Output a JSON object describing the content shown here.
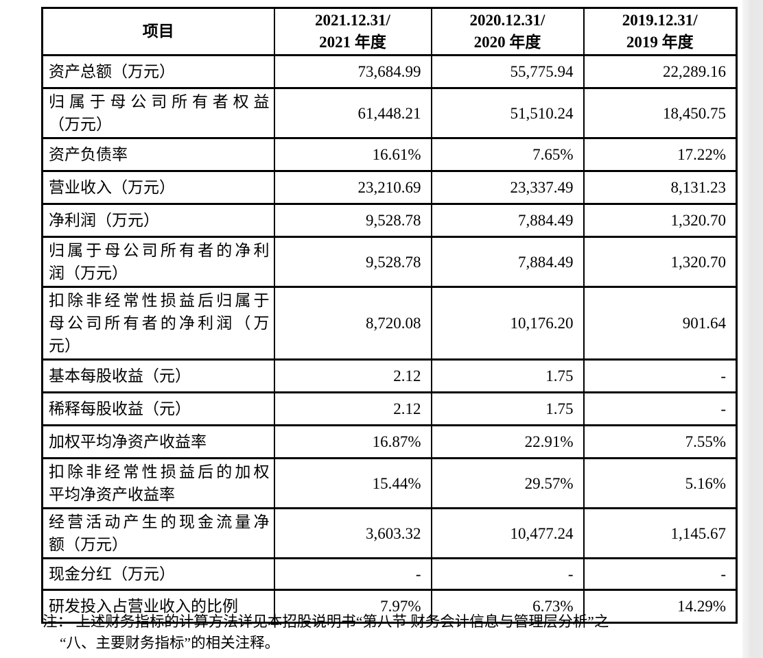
{
  "table": {
    "header": {
      "item_label": "项目",
      "col_2021": "2021.12.31/\n2021 年度",
      "col_2020": "2020.12.31/\n2020 年度",
      "col_2019": "2019.12.31/\n2019 年度"
    },
    "rows": [
      {
        "label": "资产总额（万元）",
        "v2021": "73,684.99",
        "v2020": "55,775.94",
        "v2019": "22,289.16"
      },
      {
        "label": "归属于母公司所有者权益\n（万元）",
        "v2021": "61,448.21",
        "v2020": "51,510.24",
        "v2019": "18,450.75"
      },
      {
        "label": "资产负债率",
        "v2021": "16.61%",
        "v2020": "7.65%",
        "v2019": "17.22%"
      },
      {
        "label": "营业收入（万元）",
        "v2021": "23,210.69",
        "v2020": "23,337.49",
        "v2019": "8,131.23"
      },
      {
        "label": "净利润（万元）",
        "v2021": "9,528.78",
        "v2020": "7,884.49",
        "v2019": "1,320.70"
      },
      {
        "label": "归属于母公司所有者的净利\n润（万元）",
        "v2021": "9,528.78",
        "v2020": "7,884.49",
        "v2019": "1,320.70"
      },
      {
        "label": "扣除非经常性损益后归属于\n母公司所有者的净利润（万\n元）",
        "v2021": "8,720.08",
        "v2020": "10,176.20",
        "v2019": "901.64"
      },
      {
        "label": "基本每股收益（元）",
        "v2021": "2.12",
        "v2020": "1.75",
        "v2019": "-"
      },
      {
        "label": "稀释每股收益（元）",
        "v2021": "2.12",
        "v2020": "1.75",
        "v2019": "-"
      },
      {
        "label": "加权平均净资产收益率",
        "v2021": "16.87%",
        "v2020": "22.91%",
        "v2019": "7.55%"
      },
      {
        "label": "扣除非经常性损益后的加权\n平均净资产收益率",
        "v2021": "15.44%",
        "v2020": "29.57%",
        "v2019": "5.16%"
      },
      {
        "label": "经营活动产生的现金流量净\n额（万元）",
        "v2021": "3,603.32",
        "v2020": "10,477.24",
        "v2019": "1,145.67"
      },
      {
        "label": "现金分红（万元）",
        "v2021": "-",
        "v2020": "-",
        "v2019": "-"
      },
      {
        "label": "研发投入占营业收入的比例",
        "v2021": "7.97%",
        "v2020": "6.73%",
        "v2019": "14.29%"
      }
    ]
  },
  "note": {
    "text": "注： 上述财务指标的计算方法详见本招股说明书“第八节 财务会计信息与管理层分析”之\n“八、主要财务指标”的相关注释。"
  }
}
